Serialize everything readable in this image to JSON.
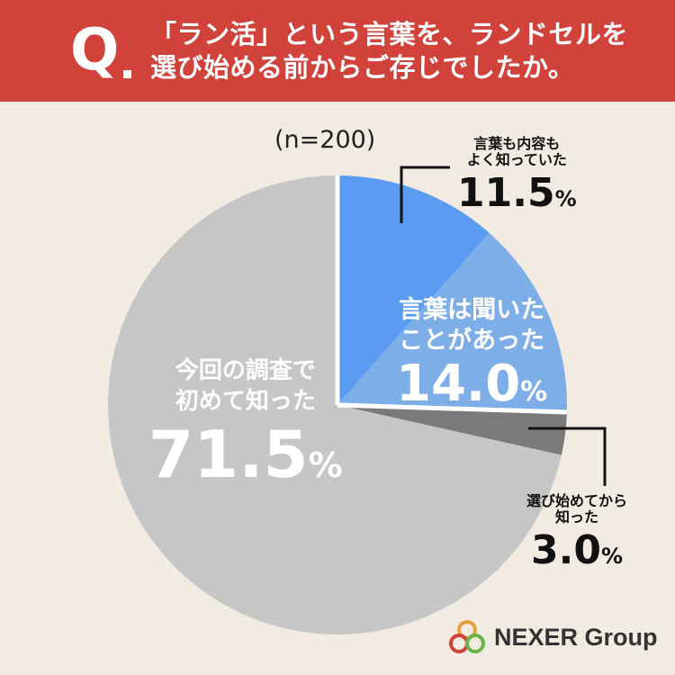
{
  "header": {
    "q_letter": "Q",
    "question_line1": "「ラン活」という言葉を、ランドセルを",
    "question_line2": "選び始める前からご存じでしたか。"
  },
  "sample_size": "(n=200)",
  "colors": {
    "header_bg": "#D0423A",
    "background": "#F2EBE1",
    "slice_knew_content": "#5B9CF2",
    "slice_heard": "#7EAEE8",
    "slice_learned_before": "#7A7A7A",
    "slice_first_time": "#C6C6C6"
  },
  "chart_data": {
    "type": "pie",
    "slices": [
      {
        "label_lines": [
          "言葉も内容も",
          "よく知っていた"
        ],
        "value": 11.5,
        "value_text": "11.5",
        "unit": "%"
      },
      {
        "label_lines": [
          "言葉は聞いた",
          "ことがあった"
        ],
        "value": 14.0,
        "value_text": "14.0",
        "unit": "%"
      },
      {
        "label_lines": [
          "選び始めてから",
          "知った"
        ],
        "value": 3.0,
        "value_text": "3.0",
        "unit": "%"
      },
      {
        "label_lines": [
          "今回の調査で",
          "初めて知った"
        ],
        "value": 71.5,
        "value_text": "71.5",
        "unit": "%"
      }
    ],
    "start_angle": "12 o'clock",
    "direction": "clockwise"
  },
  "logo": {
    "icon": "three-rings-logo-icon",
    "text": "NEXER Group"
  }
}
